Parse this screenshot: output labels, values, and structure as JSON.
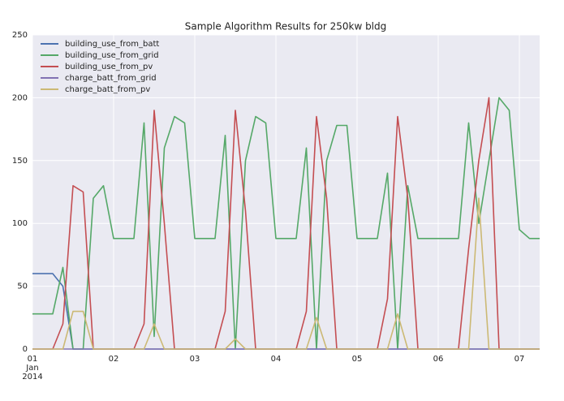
{
  "chart_data": {
    "type": "line",
    "title": "Sample Algorithm Results for 250kw bldg",
    "x": [
      1,
      1.125,
      1.25,
      1.375,
      1.5,
      1.625,
      1.75,
      1.875,
      2,
      2.125,
      2.25,
      2.375,
      2.5,
      2.625,
      2.75,
      2.875,
      3,
      3.125,
      3.25,
      3.375,
      3.5,
      3.625,
      3.75,
      3.875,
      4,
      4.125,
      4.25,
      4.375,
      4.5,
      4.625,
      4.75,
      4.875,
      5,
      5.125,
      5.25,
      5.375,
      5.5,
      5.625,
      5.75,
      5.875,
      6,
      6.125,
      6.25,
      6.375,
      6.5,
      6.625,
      6.75,
      6.875,
      7,
      7.125,
      7.25
    ],
    "series": [
      {
        "name": "building_use_from_batt",
        "color": "#4c72b0",
        "values": [
          60,
          60,
          60,
          50,
          0,
          0,
          0,
          0,
          0,
          0,
          0,
          0,
          0,
          0,
          0,
          0,
          0,
          0,
          0,
          0,
          0,
          0,
          0,
          0,
          0,
          0,
          0,
          0,
          0,
          0,
          0,
          0,
          0,
          0,
          0,
          0,
          0,
          0,
          0,
          0,
          0,
          0,
          0,
          0,
          0,
          0,
          0,
          0,
          0,
          0,
          0
        ]
      },
      {
        "name": "building_use_from_grid",
        "color": "#55a868",
        "values": [
          28,
          28,
          28,
          65,
          0,
          0,
          120,
          130,
          88,
          88,
          88,
          180,
          10,
          160,
          185,
          180,
          88,
          88,
          88,
          170,
          0,
          150,
          185,
          180,
          88,
          88,
          88,
          160,
          0,
          150,
          178,
          178,
          88,
          88,
          88,
          140,
          0,
          130,
          88,
          88,
          88,
          88,
          88,
          180,
          100,
          150,
          200,
          190,
          95,
          88,
          88
        ]
      },
      {
        "name": "building_use_from_pv",
        "color": "#c44e52",
        "values": [
          0,
          0,
          0,
          20,
          130,
          125,
          0,
          0,
          0,
          0,
          0,
          20,
          190,
          100,
          0,
          0,
          0,
          0,
          0,
          30,
          190,
          110,
          0,
          0,
          0,
          0,
          0,
          30,
          185,
          120,
          0,
          0,
          0,
          0,
          0,
          40,
          185,
          120,
          0,
          0,
          0,
          0,
          0,
          80,
          150,
          200,
          0,
          0,
          0,
          0,
          0
        ]
      },
      {
        "name": "charge_batt_from_grid",
        "color": "#8172b2",
        "values": [
          0,
          0,
          0,
          0,
          0,
          0,
          0,
          0,
          0,
          0,
          0,
          0,
          0,
          0,
          0,
          0,
          0,
          0,
          0,
          0,
          0,
          0,
          0,
          0,
          0,
          0,
          0,
          0,
          0,
          0,
          0,
          0,
          0,
          0,
          0,
          0,
          0,
          0,
          0,
          0,
          0,
          0,
          0,
          0,
          0,
          0,
          0,
          0,
          0,
          0,
          0
        ]
      },
      {
        "name": "charge_batt_from_pv",
        "color": "#ccb974",
        "values": [
          0,
          0,
          0,
          0,
          30,
          30,
          0,
          0,
          0,
          0,
          0,
          0,
          20,
          0,
          0,
          0,
          0,
          0,
          0,
          0,
          8,
          0,
          0,
          0,
          0,
          0,
          0,
          0,
          25,
          0,
          0,
          0,
          0,
          0,
          0,
          0,
          28,
          0,
          0,
          0,
          0,
          0,
          0,
          0,
          120,
          0,
          0,
          0,
          0,
          0,
          0
        ]
      }
    ],
    "xlim": [
      1,
      7.25
    ],
    "xticks": [
      {
        "value": 1,
        "label": "01 Jan 2014"
      },
      {
        "value": 2,
        "label": "02"
      },
      {
        "value": 3,
        "label": "03"
      },
      {
        "value": 4,
        "label": "04"
      },
      {
        "value": 5,
        "label": "05"
      },
      {
        "value": 6,
        "label": "06"
      },
      {
        "value": 7,
        "label": "07"
      }
    ],
    "ylim": [
      0,
      250
    ],
    "yticks": [
      0,
      50,
      100,
      150,
      200,
      250
    ],
    "grid": true,
    "legend": "upper left"
  }
}
